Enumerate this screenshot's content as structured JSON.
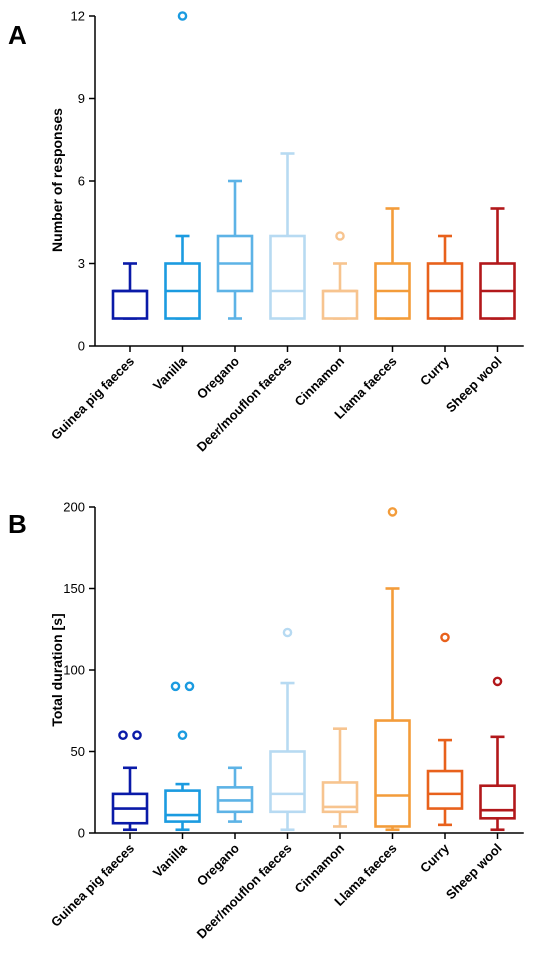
{
  "chart_data": [
    {
      "type": "box",
      "panel": "A",
      "ylabel": "Number of responses",
      "ylim": [
        0,
        12
      ],
      "yticks": [
        0,
        3,
        6,
        9,
        12
      ],
      "grid": false,
      "categories": [
        "Guinea pig faeces",
        "Vanilla",
        "Oregano",
        "Deer/mouflon faeces",
        "Cinnamon",
        "Llama faeces",
        "Curry",
        "Sheep wool"
      ],
      "colors": [
        "#0a1aa8",
        "#1b9be0",
        "#5db3e6",
        "#b7daf2",
        "#f7c48f",
        "#f39c3a",
        "#e8611c",
        "#b2181b"
      ],
      "boxes": [
        {
          "min": 1,
          "q1": 1,
          "median": 2,
          "q3": 2,
          "max": 3,
          "outliers": []
        },
        {
          "min": 1,
          "q1": 1,
          "median": 2,
          "q3": 3,
          "max": 4,
          "outliers": [
            12
          ]
        },
        {
          "min": 1,
          "q1": 2,
          "median": 3,
          "q3": 4,
          "max": 6,
          "outliers": []
        },
        {
          "min": 1,
          "q1": 1,
          "median": 2,
          "q3": 4,
          "max": 7,
          "outliers": []
        },
        {
          "min": 1,
          "q1": 1,
          "median": 2,
          "q3": 2,
          "max": 3,
          "outliers": [
            4
          ]
        },
        {
          "min": 1,
          "q1": 1,
          "median": 2,
          "q3": 3,
          "max": 5,
          "outliers": []
        },
        {
          "min": 1,
          "q1": 1,
          "median": 2,
          "q3": 3,
          "max": 4,
          "outliers": []
        },
        {
          "min": 1,
          "q1": 1,
          "median": 2,
          "q3": 3,
          "max": 5,
          "outliers": []
        }
      ]
    },
    {
      "type": "box",
      "panel": "B",
      "ylabel": "Total duration [s]",
      "ylim": [
        0,
        200
      ],
      "yticks": [
        0,
        50,
        100,
        150,
        200
      ],
      "grid": false,
      "categories": [
        "Guinea pig faeces",
        "Vanilla",
        "Oregano",
        "Deer/mouflon faeces",
        "Cinnamon",
        "Llama faeces",
        "Curry",
        "Sheep wool"
      ],
      "colors": [
        "#0a1aa8",
        "#1b9be0",
        "#5db3e6",
        "#b7daf2",
        "#f7c48f",
        "#f39c3a",
        "#e8611c",
        "#b2181b"
      ],
      "boxes": [
        {
          "min": 2,
          "q1": 6,
          "median": 15,
          "q3": 24,
          "max": 40,
          "outliers": [
            60,
            60
          ]
        },
        {
          "min": 2,
          "q1": 7,
          "median": 11,
          "q3": 26,
          "max": 30,
          "outliers": [
            90,
            90,
            60
          ]
        },
        {
          "min": 7,
          "q1": 13,
          "median": 20,
          "q3": 28,
          "max": 40,
          "outliers": []
        },
        {
          "min": 2,
          "q1": 13,
          "median": 24,
          "q3": 50,
          "max": 92,
          "outliers": [
            123
          ]
        },
        {
          "min": 4,
          "q1": 13,
          "median": 16,
          "q3": 31,
          "max": 64,
          "outliers": []
        },
        {
          "min": 2,
          "q1": 4,
          "median": 23,
          "q3": 69,
          "max": 150,
          "outliers": [
            197
          ]
        },
        {
          "min": 5,
          "q1": 15,
          "median": 24,
          "q3": 38,
          "max": 57,
          "outliers": [
            120
          ]
        },
        {
          "min": 2,
          "q1": 9,
          "median": 14,
          "q3": 29,
          "max": 59,
          "outliers": [
            93
          ]
        }
      ]
    }
  ]
}
